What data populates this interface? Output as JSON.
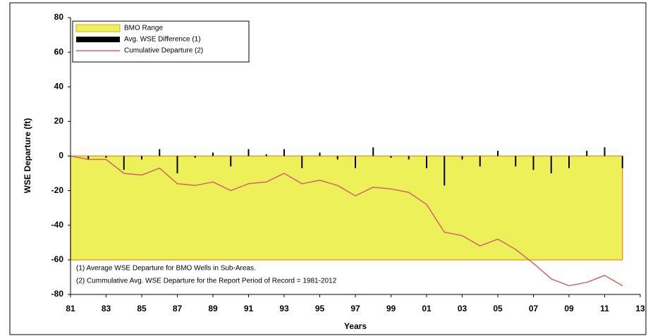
{
  "chart_data": {
    "type": "combo",
    "y_label": "WSE Departure (ft)",
    "x_label": "Years",
    "xlim": [
      1981,
      2013
    ],
    "ylim": [
      -80,
      80
    ],
    "xticks": [
      {
        "value": 1981,
        "label": "81"
      },
      {
        "value": 1983,
        "label": "83"
      },
      {
        "value": 1985,
        "label": "85"
      },
      {
        "value": 1987,
        "label": "87"
      },
      {
        "value": 1989,
        "label": "89"
      },
      {
        "value": 1991,
        "label": "91"
      },
      {
        "value": 1993,
        "label": "93"
      },
      {
        "value": 1995,
        "label": "95"
      },
      {
        "value": 1997,
        "label": "97"
      },
      {
        "value": 1999,
        "label": "99"
      },
      {
        "value": 2001,
        "label": "01"
      },
      {
        "value": 2003,
        "label": "03"
      },
      {
        "value": 2005,
        "label": "05"
      },
      {
        "value": 2007,
        "label": "07"
      },
      {
        "value": 2009,
        "label": "09"
      },
      {
        "value": 2011,
        "label": "11"
      },
      {
        "value": 2013,
        "label": "13"
      }
    ],
    "yticks": [
      -80,
      -60,
      -40,
      -20,
      0,
      20,
      40,
      60,
      80
    ],
    "grid": false,
    "legend": "top-left",
    "notes": [
      "(1) Average WSE Departure for BMO Wells in Sub-Areas.",
      "(2) Cummulative Avg. WSE Departure for the Report Period of Record = 1981-2012"
    ],
    "series": [
      {
        "name": "BMO Range",
        "type": "range",
        "color": "#eef05a",
        "edge": "#e8a020",
        "x": [
          1981,
          2012
        ],
        "low": -60,
        "high": 0
      },
      {
        "name": "Avg. WSE Difference (1)",
        "type": "bar",
        "color": "#000000",
        "x": [
          1982,
          1983,
          1984,
          1985,
          1986,
          1987,
          1988,
          1989,
          1990,
          1991,
          1992,
          1993,
          1994,
          1995,
          1996,
          1997,
          1998,
          1999,
          2000,
          2001,
          2002,
          2003,
          2004,
          2005,
          2006,
          2007,
          2008,
          2009,
          2010,
          2011,
          2012
        ],
        "values": [
          -2,
          -1,
          -8,
          -2,
          4,
          -10,
          -1,
          2,
          -6,
          4,
          1,
          4,
          -7,
          2,
          -2,
          -7,
          5,
          -1,
          -2,
          -7,
          -17,
          -2,
          -6,
          3,
          -6,
          -8,
          -10,
          -7,
          3,
          5,
          -7
        ]
      },
      {
        "name": "Cumulative Departure (2)",
        "type": "line",
        "color": "#d06468",
        "x": [
          1981,
          1982,
          1983,
          1984,
          1985,
          1986,
          1987,
          1988,
          1989,
          1990,
          1991,
          1992,
          1993,
          1994,
          1995,
          1996,
          1997,
          1998,
          1999,
          2000,
          2001,
          2002,
          2003,
          2004,
          2005,
          2006,
          2007,
          2008,
          2009,
          2010,
          2011,
          2012
        ],
        "values": [
          0,
          -2,
          -2,
          -10,
          -11,
          -7,
          -16,
          -17,
          -15,
          -20,
          -16,
          -15,
          -10,
          -16,
          -14,
          -17,
          -23,
          -18,
          -19,
          -21,
          -28,
          -44,
          -46,
          -52,
          -48,
          -54,
          -62,
          -71,
          -75,
          -73,
          -69,
          -75
        ]
      }
    ]
  }
}
